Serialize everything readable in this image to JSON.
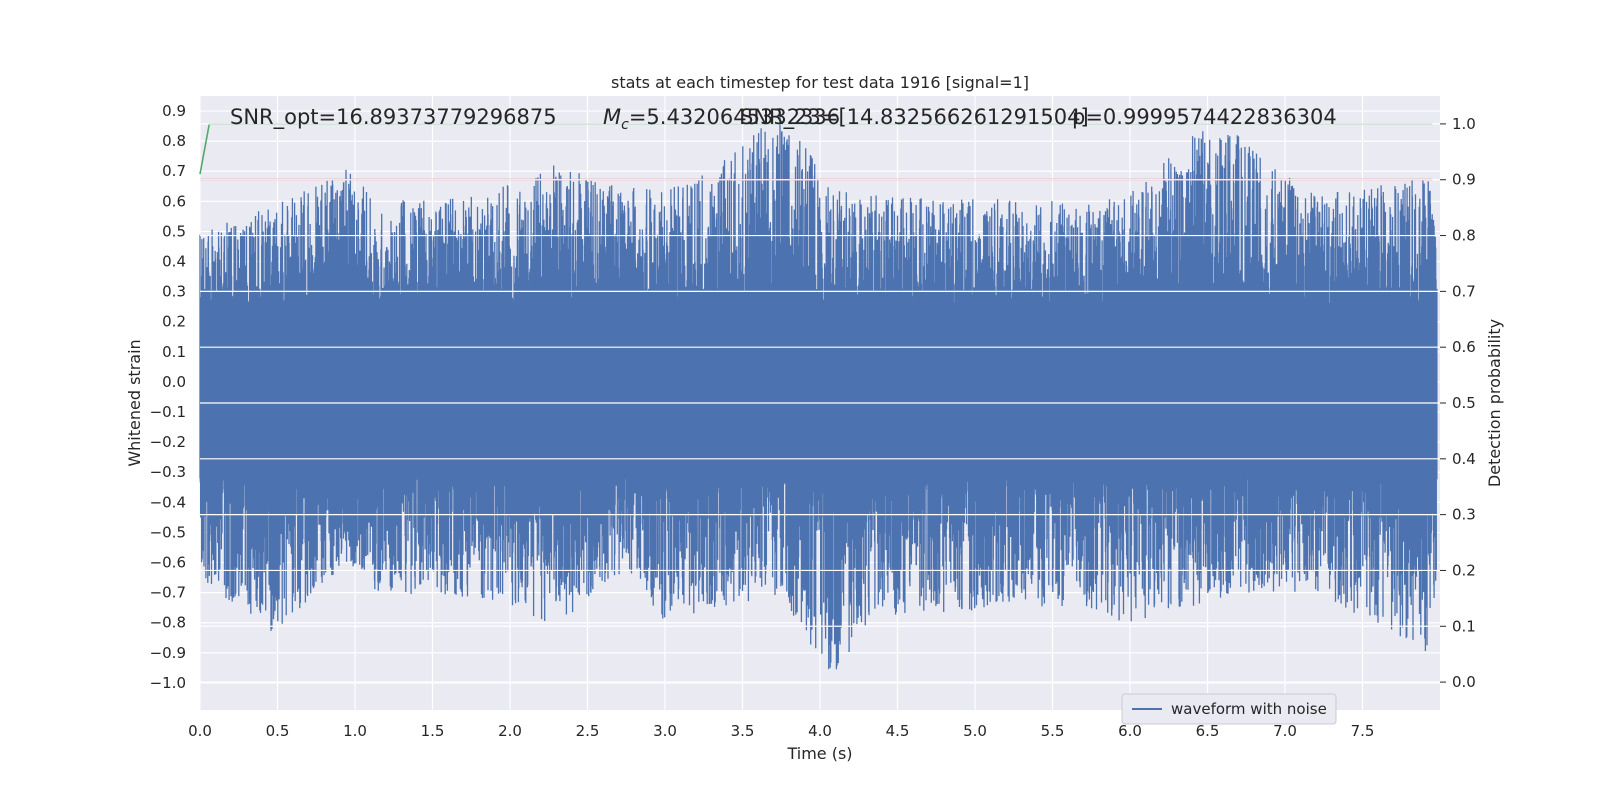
{
  "chart_data": {
    "type": "line",
    "title": "stats at each timestep for test data 1916 [signal=1]",
    "xlabel": "Time (s)",
    "ylabel": "Whitened strain",
    "y2label": "Detection probability",
    "xlim": [
      0.0,
      8.0
    ],
    "ylim": [
      -1.09,
      0.95
    ],
    "y2lim": [
      -0.05,
      1.05
    ],
    "xticks": [
      "0.0",
      "0.5",
      "1.0",
      "1.5",
      "2.0",
      "2.5",
      "3.0",
      "3.5",
      "4.0",
      "4.5",
      "5.0",
      "5.5",
      "6.0",
      "6.5",
      "7.0",
      "7.5"
    ],
    "yticks": [
      "0.9",
      "0.8",
      "0.7",
      "0.6",
      "0.5",
      "0.4",
      "0.3",
      "0.2",
      "0.1",
      "0.0",
      "−0.1",
      "−0.2",
      "−0.3",
      "−0.4",
      "−0.5",
      "−0.6",
      "−0.7",
      "−0.8",
      "−0.9",
      "−1.0"
    ],
    "y2ticks": [
      "1.0",
      "0.9",
      "0.8",
      "0.7",
      "0.6",
      "0.5",
      "0.4",
      "0.3",
      "0.2",
      "0.1",
      "0.0"
    ],
    "grid": true,
    "legend_position": "lower right",
    "annotations": {
      "snr_opt": "SNR_opt=16.89373779296875",
      "mc_symbol": "M",
      "mc_subscript": "c",
      "mc_value": "=5.4320645332336",
      "snr_23": "SNR_23=[14.832566261291504]",
      "prob": "p=0.9999574422836304"
    },
    "series": [
      {
        "name": "waveform with noise",
        "axis": "left",
        "color": "#4c72b0",
        "envelope_x": [
          0.0,
          0.45,
          0.96,
          1.15,
          1.8,
          2.28,
          2.75,
          3.0,
          3.3,
          3.76,
          4.08,
          4.35,
          5.6,
          5.98,
          6.46,
          6.72,
          7.2,
          7.92,
          8.0
        ],
        "envelope_upper": [
          0.5,
          0.58,
          0.71,
          0.6,
          0.62,
          0.72,
          0.65,
          0.64,
          0.72,
          0.9,
          0.65,
          0.62,
          0.6,
          0.62,
          0.85,
          0.82,
          0.62,
          0.68,
          0.55
        ],
        "envelope_lower": [
          -0.65,
          -0.85,
          -0.6,
          -0.7,
          -0.72,
          -0.82,
          -0.62,
          -0.8,
          -0.75,
          -0.72,
          -1.0,
          -0.78,
          -0.75,
          -0.8,
          -0.74,
          -0.7,
          -0.7,
          -0.9,
          -0.6
        ]
      },
      {
        "name": "",
        "axis": "right",
        "color": "#55a868",
        "x": [
          0.0,
          0.06,
          7.95
        ],
        "y": [
          0.91,
          1.0,
          1.0
        ]
      },
      {
        "name": "",
        "axis": "right",
        "color": "#c44e52",
        "x": [
          0.0,
          7.95
        ],
        "y": [
          0.9,
          0.9
        ]
      }
    ]
  }
}
